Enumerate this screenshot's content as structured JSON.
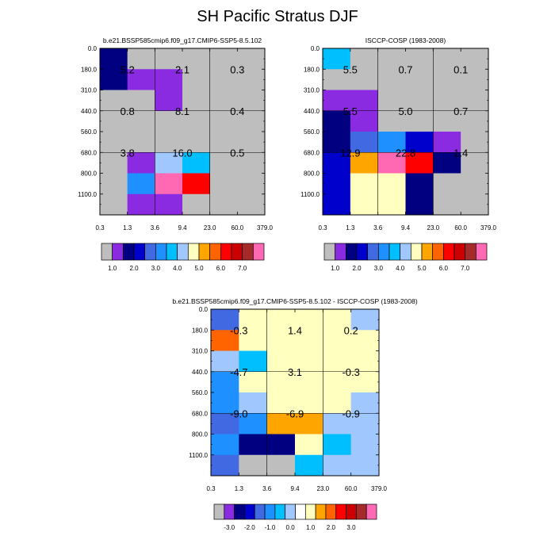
{
  "title": "SH Pacific Stratus DJF",
  "palette": {
    "gray": "#BEBEBE",
    "violet": "#8A2BE2",
    "navy": "#000080",
    "medblue": "#0000CD",
    "royal": "#4169E1",
    "dodger": "#1E90FF",
    "sky": "#00BFFF",
    "lightsky": "#A0C8FF",
    "ivory": "#FFFFC0",
    "orange": "#FFA500",
    "darkorange": "#FF6400",
    "red": "#FF0000",
    "crimson": "#CC0000",
    "brown": "#A52A2A",
    "pink": "#FF69B4",
    "white": "#FFFFFF"
  },
  "chart_data": [
    {
      "type": "heatmap",
      "title": "b.e21.BSSP585cmip6.f09_g17.CMIP6-SSP5-8.5.102",
      "x_ticks": [
        "0.3",
        "1.3",
        "3.6",
        "9.4",
        "23.0",
        "60.0",
        "379.0"
      ],
      "y_ticks": [
        "0.0",
        "180.0",
        "310.0",
        "440.0",
        "560.0",
        "680.0",
        "800.0",
        "1100.0"
      ],
      "xlabel": "",
      "ylabel": "",
      "cells": [
        [
          "navy",
          "gray",
          "gray",
          "gray",
          "gray",
          "gray"
        ],
        [
          "navy",
          "violet",
          "violet",
          "gray",
          "gray",
          "gray"
        ],
        [
          "gray",
          "gray",
          "violet",
          "gray",
          "gray",
          "gray"
        ],
        [
          "gray",
          "gray",
          "gray",
          "gray",
          "gray",
          "gray"
        ],
        [
          "gray",
          "gray",
          "gray",
          "gray",
          "gray",
          "gray"
        ],
        [
          "gray",
          "violet",
          "lightsky",
          "sky",
          "gray",
          "gray"
        ],
        [
          "gray",
          "dodger",
          "pink",
          "red",
          "gray",
          "gray"
        ],
        [
          "gray",
          "violet",
          "violet",
          "gray",
          "gray",
          "gray"
        ]
      ],
      "box_values": [
        [
          "5.2",
          "2.1",
          "0.3"
        ],
        [
          "0.8",
          "8.1",
          "0.4"
        ],
        [
          "3.8",
          "16.0",
          "0.5"
        ]
      ],
      "colorbar": {
        "colors": [
          "gray",
          "violet",
          "navy",
          "medblue",
          "royal",
          "dodger",
          "sky",
          "lightsky",
          "ivory",
          "orange",
          "darkorange",
          "red",
          "crimson",
          "brown",
          "pink"
        ],
        "labels": [
          "1.0",
          "2.0",
          "3.0",
          "4.0",
          "5.0",
          "6.0",
          "7.0"
        ],
        "label_positions": [
          1,
          3,
          5,
          7,
          9,
          11,
          13
        ]
      }
    },
    {
      "type": "heatmap",
      "title": "ISCCP-COSP (1983-2008)",
      "x_ticks": [
        "0.3",
        "1.3",
        "3.6",
        "9.4",
        "23.0",
        "60.0",
        "379.0"
      ],
      "y_ticks": [
        "0.0",
        "180.0",
        "310.0",
        "440.0",
        "560.0",
        "680.0",
        "800.0",
        "1100.0"
      ],
      "xlabel": "",
      "ylabel": "",
      "cells": [
        [
          "sky",
          "gray",
          "gray",
          "gray",
          "gray",
          "gray"
        ],
        [
          "gray",
          "gray",
          "gray",
          "gray",
          "gray",
          "gray"
        ],
        [
          "violet",
          "violet",
          "gray",
          "gray",
          "gray",
          "gray"
        ],
        [
          "navy",
          "violet",
          "gray",
          "gray",
          "gray",
          "gray"
        ],
        [
          "navy",
          "royal",
          "dodger",
          "medblue",
          "violet",
          "gray"
        ],
        [
          "medblue",
          "orange",
          "pink",
          "red",
          "navy",
          "gray"
        ],
        [
          "medblue",
          "ivory",
          "ivory",
          "navy",
          "gray",
          "gray"
        ],
        [
          "medblue",
          "ivory",
          "ivory",
          "navy",
          "gray",
          "gray"
        ]
      ],
      "box_values": [
        [
          "5.5",
          "0.7",
          "0.1"
        ],
        [
          "5.5",
          "5.0",
          "0.7"
        ],
        [
          "12.9",
          "22.8",
          "1.4"
        ]
      ],
      "colorbar": {
        "colors": [
          "gray",
          "violet",
          "navy",
          "medblue",
          "royal",
          "dodger",
          "sky",
          "lightsky",
          "ivory",
          "orange",
          "darkorange",
          "red",
          "crimson",
          "brown",
          "pink"
        ],
        "labels": [
          "1.0",
          "2.0",
          "3.0",
          "4.0",
          "5.0",
          "6.0",
          "7.0"
        ],
        "label_positions": [
          1,
          3,
          5,
          7,
          9,
          11,
          13
        ]
      }
    },
    {
      "type": "heatmap",
      "title": "b.e21.BSSP585cmip6.f09_g17.CMIP6-SSP5-8.5.102 - ISCCP-COSP (1983-2008)",
      "x_ticks": [
        "0.3",
        "1.3",
        "3.6",
        "9.4",
        "23.0",
        "60.0",
        "379.0"
      ],
      "y_ticks": [
        "0.0",
        "180.0",
        "310.0",
        "440.0",
        "560.0",
        "680.0",
        "800.0",
        "1100.0"
      ],
      "xlabel": "",
      "ylabel": "",
      "cells": [
        [
          "royal",
          "ivory",
          "ivory",
          "ivory",
          "ivory",
          "lightsky"
        ],
        [
          "darkorange",
          "ivory",
          "ivory",
          "ivory",
          "ivory",
          "ivory"
        ],
        [
          "lightsky",
          "sky",
          "ivory",
          "ivory",
          "ivory",
          "ivory"
        ],
        [
          "dodger",
          "ivory",
          "ivory",
          "ivory",
          "ivory",
          "ivory"
        ],
        [
          "dodger",
          "lightsky",
          "ivory",
          "ivory",
          "ivory",
          "lightsky"
        ],
        [
          "royal",
          "dodger",
          "orange",
          "orange",
          "lightsky",
          "lightsky"
        ],
        [
          "dodger",
          "navy",
          "navy",
          "ivory",
          "sky",
          "lightsky"
        ],
        [
          "royal",
          "gray",
          "gray",
          "sky",
          "lightsky",
          "lightsky"
        ]
      ],
      "box_values": [
        [
          "-0.3",
          "1.4",
          "0.2"
        ],
        [
          "-4.7",
          "3.1",
          "-0.3"
        ],
        [
          "-9.0",
          "-6.9",
          "-0.9"
        ]
      ],
      "colorbar": {
        "colors": [
          "gray",
          "violet",
          "navy",
          "medblue",
          "royal",
          "dodger",
          "sky",
          "lightsky",
          "white",
          "ivory",
          "orange",
          "darkorange",
          "red",
          "crimson",
          "brown",
          "pink"
        ],
        "labels": [
          "-3.0",
          "-2.0",
          "-1.0",
          "0.0",
          "1.0",
          "2.0",
          "3.0"
        ],
        "label_positions": [
          1.5,
          3.5,
          5.5,
          7.5,
          9.5,
          11.5,
          13.5
        ]
      }
    }
  ]
}
